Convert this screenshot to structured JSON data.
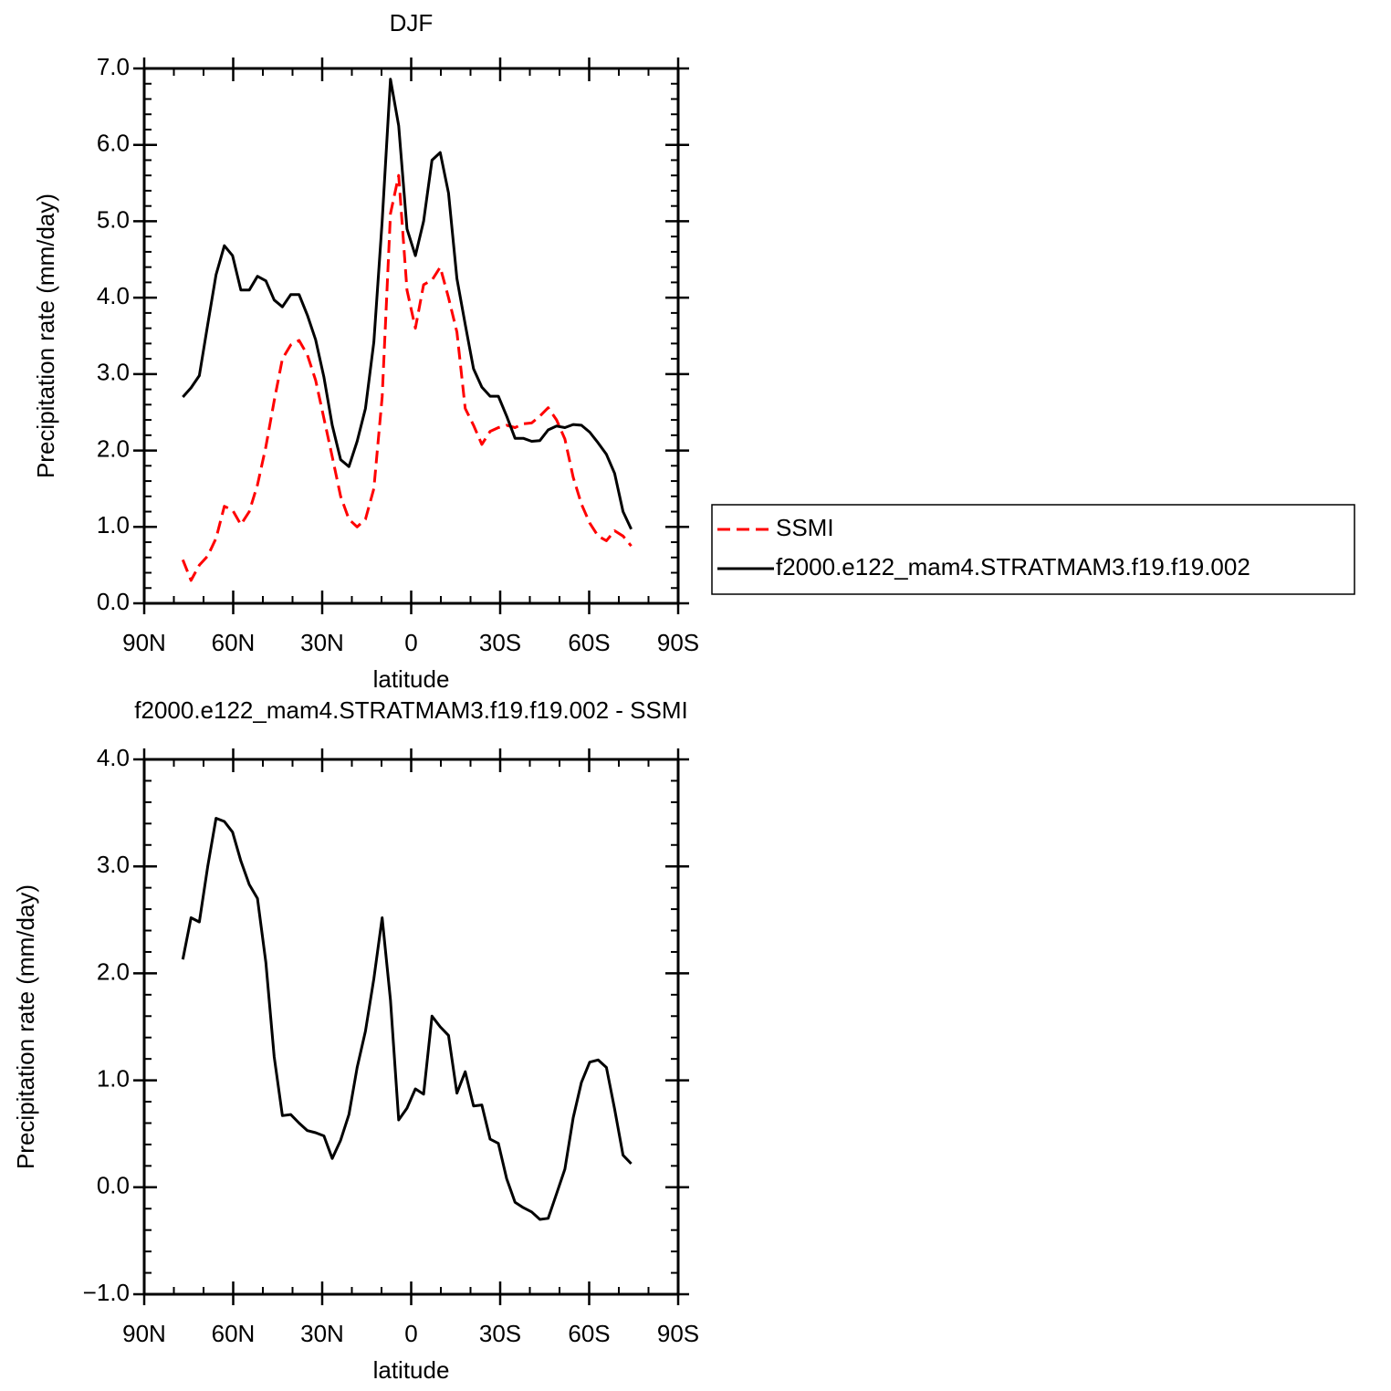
{
  "chart_data": [
    {
      "type": "line",
      "title": "DJF",
      "x_label": "latitude",
      "y_label": "Precipitation rate (mm/day)",
      "x": [
        77,
        74.2,
        71.4,
        68.6,
        65.8,
        63,
        60.2,
        57.4,
        54.6,
        51.8,
        49,
        46.2,
        43.4,
        40.6,
        37.8,
        35,
        32.2,
        29.4,
        26.6,
        23.8,
        21,
        18.2,
        15.4,
        12.6,
        9.8,
        7,
        4.2,
        1.4,
        -1.4,
        -4.2,
        -7,
        -9.8,
        -12.6,
        -15.4,
        -18.2,
        -21,
        -23.8,
        -26.6,
        -29.4,
        -32.2,
        -35,
        -37.8,
        -40.6,
        -43.4,
        -46.2,
        -49,
        -51.8,
        -54.6,
        -57.4,
        -60.2,
        -63,
        -65.8,
        -68.6,
        -71.4,
        -74.2
      ],
      "xlim": [
        90,
        -90
      ],
      "xticks": [
        {
          "value": 90,
          "label": "90N"
        },
        {
          "value": 60,
          "label": "60N"
        },
        {
          "value": 30,
          "label": "30N"
        },
        0,
        {
          "value": -30,
          "label": "30S"
        },
        {
          "value": -60,
          "label": "60S"
        },
        {
          "value": -90,
          "label": "90S"
        }
      ],
      "ylim": [
        0,
        7
      ],
      "yticks": [
        {
          "value": 0,
          "label": "0.0"
        },
        {
          "value": 1,
          "label": "1.0"
        },
        {
          "value": 2,
          "label": "2.0"
        },
        {
          "value": 3,
          "label": "3.0"
        },
        {
          "value": 4,
          "label": "4.0"
        },
        {
          "value": 5,
          "label": "5.0"
        },
        {
          "value": 6,
          "label": "6.0"
        },
        {
          "value": 7,
          "label": "7.0"
        }
      ],
      "legend": "right",
      "series": [
        {
          "name": "SSMI",
          "color": "#ff0000",
          "style": "dashed",
          "values": [
            0.57,
            0.3,
            0.5,
            0.62,
            0.85,
            1.27,
            1.22,
            1.03,
            1.2,
            1.55,
            2.05,
            2.65,
            3.2,
            3.38,
            3.44,
            3.25,
            2.92,
            2.42,
            1.92,
            1.4,
            1.1,
            1.0,
            1.1,
            1.5,
            2.7,
            5.1,
            5.6,
            4.1,
            3.6,
            4.17,
            4.23,
            4.4,
            4.0,
            3.55,
            2.55,
            2.33,
            2.08,
            2.25,
            2.3,
            2.33,
            2.3,
            2.35,
            2.36,
            2.45,
            2.56,
            2.4,
            2.15,
            1.65,
            1.3,
            1.05,
            0.88,
            0.82,
            0.95,
            0.88,
            0.75
          ]
        },
        {
          "name": "f2000.e122_mam4.STRATMAM3.f19.f19.002",
          "color": "#000000",
          "style": "solid",
          "values": [
            2.7,
            2.82,
            2.98,
            3.65,
            4.3,
            4.68,
            4.55,
            4.1,
            4.1,
            4.28,
            4.22,
            3.97,
            3.88,
            4.04,
            4.04,
            3.77,
            3.45,
            2.96,
            2.33,
            1.88,
            1.79,
            2.12,
            2.55,
            3.42,
            5.0,
            6.86,
            6.25,
            4.9,
            4.55,
            5.0,
            5.8,
            5.9,
            5.37,
            4.25,
            3.65,
            3.07,
            2.83,
            2.71,
            2.71,
            2.45,
            2.16,
            2.16,
            2.12,
            2.13,
            2.27,
            2.32,
            2.3,
            2.34,
            2.33,
            2.24,
            2.1,
            1.95,
            1.7,
            1.2,
            0.97
          ]
        }
      ]
    },
    {
      "type": "line",
      "title": "f2000.e122_mam4.STRATMAM3.f19.f19.002 - SSMI",
      "x_label": "latitude",
      "y_label": "Precipitation rate (mm/day)",
      "x": [
        77,
        74.2,
        71.4,
        68.6,
        65.8,
        63,
        60.2,
        57.4,
        54.6,
        51.8,
        49,
        46.2,
        43.4,
        40.6,
        37.8,
        35,
        32.2,
        29.4,
        26.6,
        23.8,
        21,
        18.2,
        15.4,
        12.6,
        9.8,
        7,
        4.2,
        1.4,
        -1.4,
        -4.2,
        -7,
        -9.8,
        -12.6,
        -15.4,
        -18.2,
        -21,
        -23.8,
        -26.6,
        -29.4,
        -32.2,
        -35,
        -37.8,
        -40.6,
        -43.4,
        -46.2,
        -49,
        -51.8,
        -54.6,
        -57.4,
        -60.2,
        -63,
        -65.8,
        -68.6,
        -71.4,
        -74.2
      ],
      "xlim": [
        90,
        -90
      ],
      "xticks": [
        {
          "value": 90,
          "label": "90N"
        },
        {
          "value": 60,
          "label": "60N"
        },
        {
          "value": 30,
          "label": "30N"
        },
        0,
        {
          "value": -30,
          "label": "30S"
        },
        {
          "value": -60,
          "label": "60S"
        },
        {
          "value": -90,
          "label": "90S"
        }
      ],
      "ylim": [
        -1,
        4
      ],
      "yticks": [
        {
          "value": -1,
          "label": "−1.0"
        },
        {
          "value": 0,
          "label": "0.0"
        },
        {
          "value": 1,
          "label": "1.0"
        },
        {
          "value": 2,
          "label": "2.0"
        },
        {
          "value": 3,
          "label": "3.0"
        },
        {
          "value": 4,
          "label": "4.0"
        }
      ],
      "series": [
        {
          "color": "#000000",
          "style": "solid",
          "values": [
            2.13,
            2.52,
            2.48,
            3.0,
            3.45,
            3.42,
            3.32,
            3.05,
            2.83,
            2.7,
            2.1,
            1.22,
            0.67,
            0.68,
            0.6,
            0.53,
            0.51,
            0.48,
            0.27,
            0.44,
            0.68,
            1.12,
            1.46,
            1.95,
            2.52,
            1.75,
            0.63,
            0.74,
            0.92,
            0.87,
            1.6,
            1.5,
            1.42,
            0.88,
            1.08,
            0.76,
            0.77,
            0.45,
            0.41,
            0.08,
            -0.14,
            -0.19,
            -0.23,
            -0.3,
            -0.29,
            -0.06,
            0.17,
            0.65,
            0.98,
            1.17,
            1.19,
            1.12,
            0.73,
            0.3,
            0.22
          ]
        }
      ]
    }
  ]
}
